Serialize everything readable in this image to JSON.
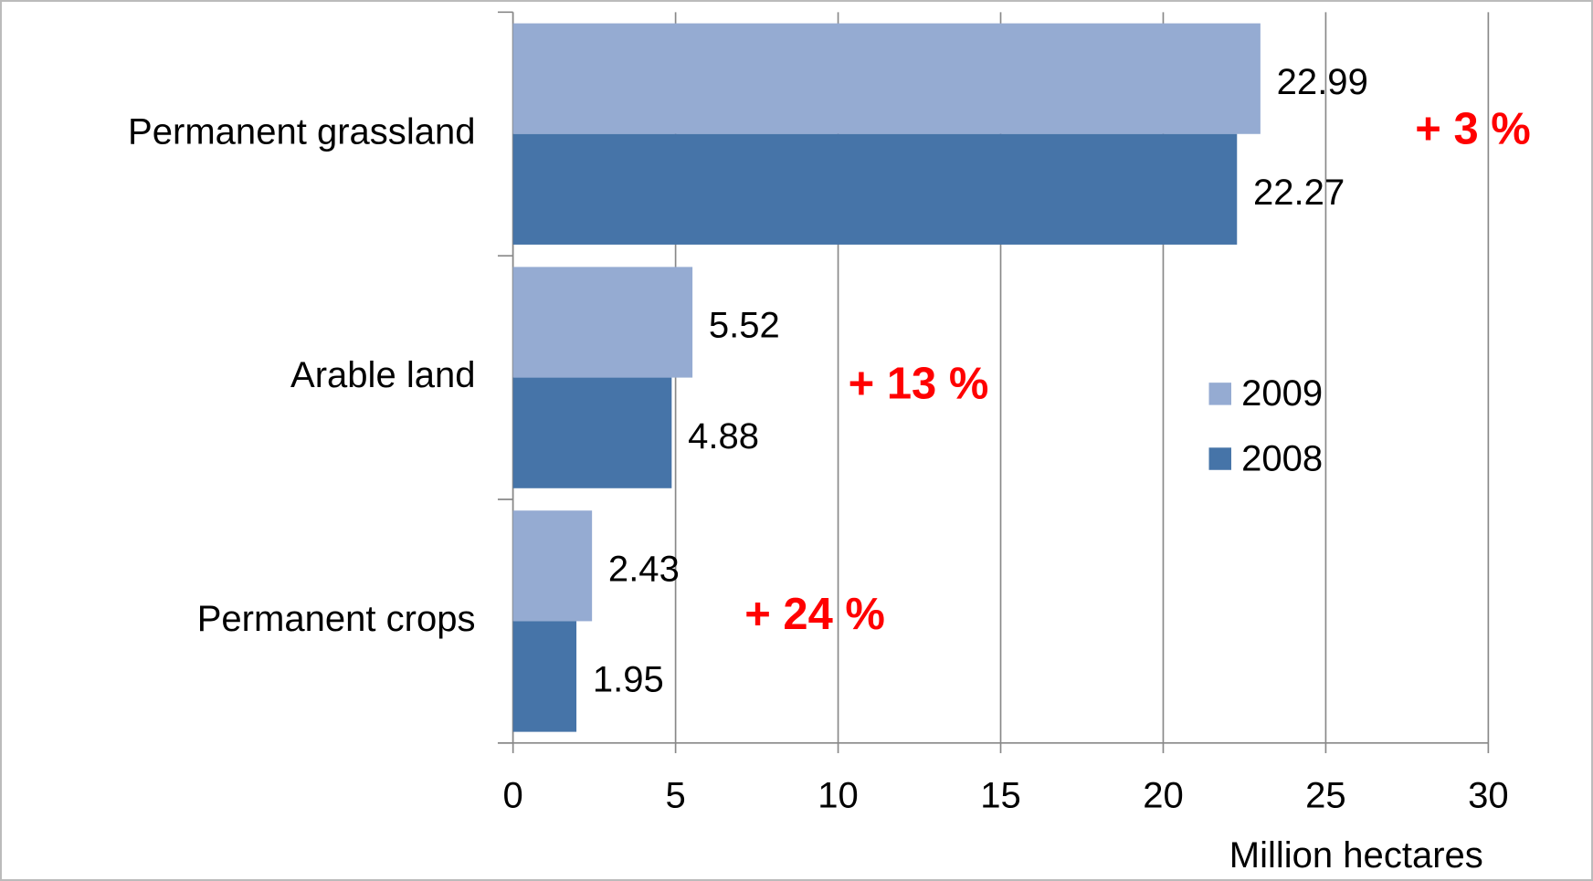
{
  "chart_data": {
    "type": "bar",
    "orientation": "horizontal",
    "categories": [
      "Permanent grassland",
      "Arable land",
      "Permanent crops"
    ],
    "series": [
      {
        "name": "2009",
        "color": "#95abd2",
        "values": [
          22.99,
          5.52,
          2.43
        ]
      },
      {
        "name": "2008",
        "color": "#4674a8",
        "values": [
          22.27,
          4.88,
          1.95
        ]
      }
    ],
    "xlim": [
      0,
      30
    ],
    "xticks": [
      0,
      5,
      10,
      15,
      20,
      25,
      30
    ],
    "xlabel": "Million hectares",
    "grid": true,
    "annotations": [
      "+ 3 %",
      "+ 13 %",
      "+ 24 %"
    ]
  }
}
